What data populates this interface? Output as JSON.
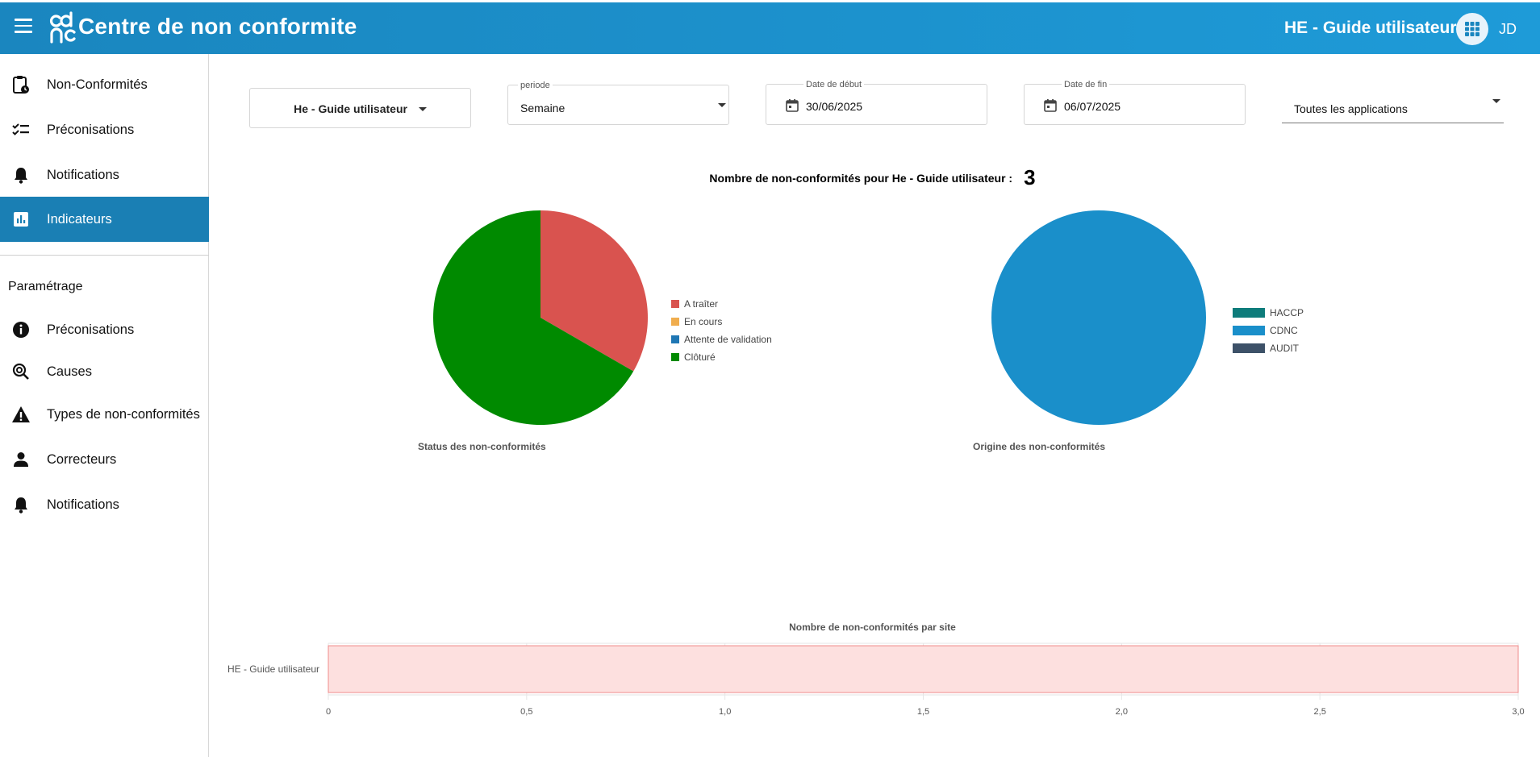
{
  "header": {
    "app_title": "Centre de non conformite",
    "site_selector": "HE - Guide utilisateur",
    "user_initials": "JD",
    "colors": {
      "bar_start": "#1a86bf",
      "bar_end": "#1e9bd8"
    }
  },
  "sidebar": {
    "items": [
      {
        "label": "Non-Conformités",
        "icon": "clipboard-clock-icon"
      },
      {
        "label": "Préconisations",
        "icon": "checklist-icon"
      },
      {
        "label": "Notifications",
        "icon": "bell-icon"
      },
      {
        "label": "Indicateurs",
        "icon": "bar-chart-icon",
        "active": true
      }
    ],
    "section_title": "Paramétrage",
    "settings_items": [
      {
        "label": "Préconisations",
        "icon": "info-icon"
      },
      {
        "label": "Causes",
        "icon": "search-target-icon"
      },
      {
        "label": "Types de non-conformités",
        "icon": "warning-icon"
      },
      {
        "label": "Correcteurs",
        "icon": "person-icon"
      },
      {
        "label": "Notifications",
        "icon": "bell-icon"
      }
    ]
  },
  "filters": {
    "site": "He - Guide utilisateur",
    "periode": {
      "label": "periode",
      "value": "Semaine"
    },
    "start_date": {
      "label": "Date de début",
      "value": "30/06/2025"
    },
    "end_date": {
      "label": "Date de fin",
      "value": "06/07/2025"
    },
    "applications": "Toutes les applications"
  },
  "summary": {
    "label": "Nombre de non-conformités pour He - Guide utilisateur :",
    "count": "3"
  },
  "chart_data": [
    {
      "type": "pie",
      "title": "Status des non-conformités",
      "categories": [
        "A traîter",
        "En cours",
        "Attente de validation",
        "Clôturé"
      ],
      "values": [
        1,
        0,
        0,
        2
      ],
      "colors": [
        "#d9534f",
        "#f0ad4e",
        "#1f77b4",
        "#008a00"
      ],
      "legend": "right"
    },
    {
      "type": "pie",
      "title": "Origine des non-conformités",
      "categories": [
        "HACCP",
        "CDNC",
        "AUDIT"
      ],
      "values": [
        0,
        3,
        0
      ],
      "colors": [
        "#0e7c7b",
        "#1a8fca",
        "#3d5168"
      ],
      "legend": "right"
    },
    {
      "type": "bar",
      "orientation": "horizontal",
      "title": "Nombre de non-conformités par site",
      "categories": [
        "HE - Guide utilisateur"
      ],
      "values": [
        3
      ],
      "xlim": [
        0,
        3
      ],
      "xticks": [
        "0",
        "0,5",
        "1,0",
        "1,5",
        "2,0",
        "2,5",
        "3,0"
      ],
      "color": "#fde0df",
      "border_color": "#f08b8b",
      "grid": true
    }
  ]
}
